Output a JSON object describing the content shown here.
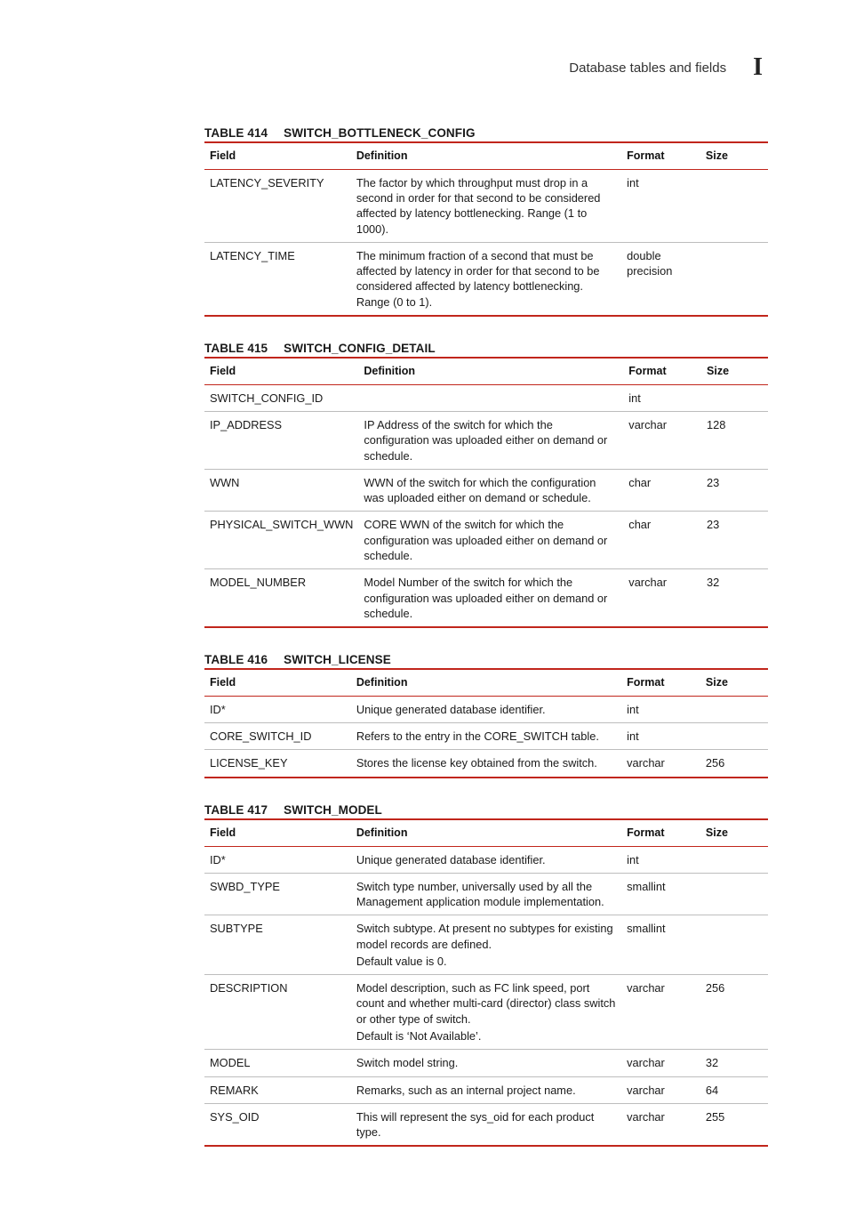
{
  "header": {
    "section_title": "Database tables and fields",
    "marker": "I"
  },
  "columns": {
    "field": "Field",
    "definition": "Definition",
    "format": "Format",
    "size": "Size"
  },
  "tables": [
    {
      "id": "t414",
      "number": "TABLE 414",
      "name": "SWITCH_BOTTLENECK_CONFIG",
      "rows": [
        {
          "field": "LATENCY_SEVERITY",
          "definition": [
            "The factor by which throughput must drop in a second in order for that second to be considered affected by latency bottlenecking. Range (1 to 1000)."
          ],
          "format": "int",
          "size": ""
        },
        {
          "field": "LATENCY_TIME",
          "definition": [
            "The minimum fraction of a second that must be affected by latency in order for that second to be considered affected by latency bottlenecking. Range (0 to 1)."
          ],
          "format": "double precision",
          "size": ""
        }
      ]
    },
    {
      "id": "t415",
      "number": "TABLE 415",
      "name": "SWITCH_CONFIG_DETAIL",
      "rows": [
        {
          "field": "SWITCH_CONFIG_ID",
          "definition": [
            ""
          ],
          "format": "int",
          "size": ""
        },
        {
          "field": "IP_ADDRESS",
          "definition": [
            "IP Address of the switch for which the configuration was uploaded either on demand or schedule."
          ],
          "format": "varchar",
          "size": "128"
        },
        {
          "field": "WWN",
          "definition": [
            "WWN of the switch for which the configuration was uploaded either on demand or schedule."
          ],
          "format": "char",
          "size": "23"
        },
        {
          "field": "PHYSICAL_SWITCH_WWN",
          "definition": [
            "CORE WWN of the switch for which the configuration was uploaded either on demand or schedule."
          ],
          "format": "char",
          "size": "23"
        },
        {
          "field": "MODEL_NUMBER",
          "definition": [
            "Model Number of the switch for which the configuration was uploaded either on demand or schedule."
          ],
          "format": "varchar",
          "size": "32"
        }
      ]
    },
    {
      "id": "t416",
      "number": "TABLE 416",
      "name": "SWITCH_LICENSE",
      "rows": [
        {
          "field": "ID*",
          "definition": [
            "Unique generated database identifier."
          ],
          "format": "int",
          "size": ""
        },
        {
          "field": "CORE_SWITCH_ID",
          "definition": [
            "Refers to the entry in the CORE_SWITCH table."
          ],
          "format": "int",
          "size": ""
        },
        {
          "field": "LICENSE_KEY",
          "definition": [
            "Stores the license key obtained from the switch."
          ],
          "format": "varchar",
          "size": "256"
        }
      ]
    },
    {
      "id": "t417",
      "number": "TABLE 417",
      "name": "SWITCH_MODEL",
      "rows": [
        {
          "field": "ID*",
          "definition": [
            "Unique generated database identifier."
          ],
          "format": "int",
          "size": ""
        },
        {
          "field": "SWBD_TYPE",
          "definition": [
            "Switch type number, universally used by all the Management application module implementation."
          ],
          "format": "smallint",
          "size": ""
        },
        {
          "field": "SUBTYPE",
          "definition": [
            "Switch subtype. At present no subtypes for existing model records are defined.",
            "Default value is 0."
          ],
          "format": "smallint",
          "size": ""
        },
        {
          "field": "DESCRIPTION",
          "definition": [
            "Model description, such as FC link speed, port count and whether multi-card (director) class switch or other type of switch.",
            "Default is ‘Not Available’."
          ],
          "format": "varchar",
          "size": "256"
        },
        {
          "field": "MODEL",
          "definition": [
            "Switch model string."
          ],
          "format": "varchar",
          "size": "32"
        },
        {
          "field": "REMARK",
          "definition": [
            "Remarks, such as an internal project name."
          ],
          "format": "varchar",
          "size": "64"
        },
        {
          "field": "SYS_OID",
          "definition": [
            "This will represent the sys_oid for each product type."
          ],
          "format": "varchar",
          "size": "255"
        }
      ]
    }
  ]
}
